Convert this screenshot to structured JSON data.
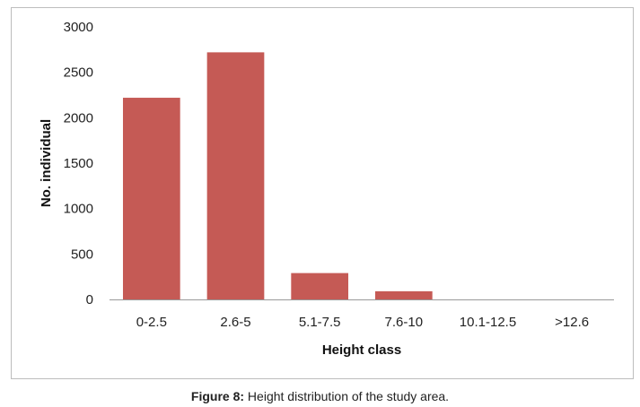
{
  "chart_data": {
    "type": "bar",
    "categories": [
      "0-2.5",
      "2.6-5",
      "5.1-7.5",
      "7.6-10",
      "10.1-12.5",
      ">12.6"
    ],
    "values": [
      2220,
      2720,
      290,
      90,
      0,
      0
    ],
    "xlabel": "Height class",
    "ylabel": "No. individual",
    "ylim": [
      0,
      3000
    ],
    "yticks": [
      0,
      500,
      1000,
      1500,
      2000,
      2500,
      3000
    ],
    "bar_color": "#c55a55",
    "grid": false,
    "legend": "none"
  },
  "caption": {
    "label": "Figure 8:",
    "text": " Height distribution of the study area."
  }
}
